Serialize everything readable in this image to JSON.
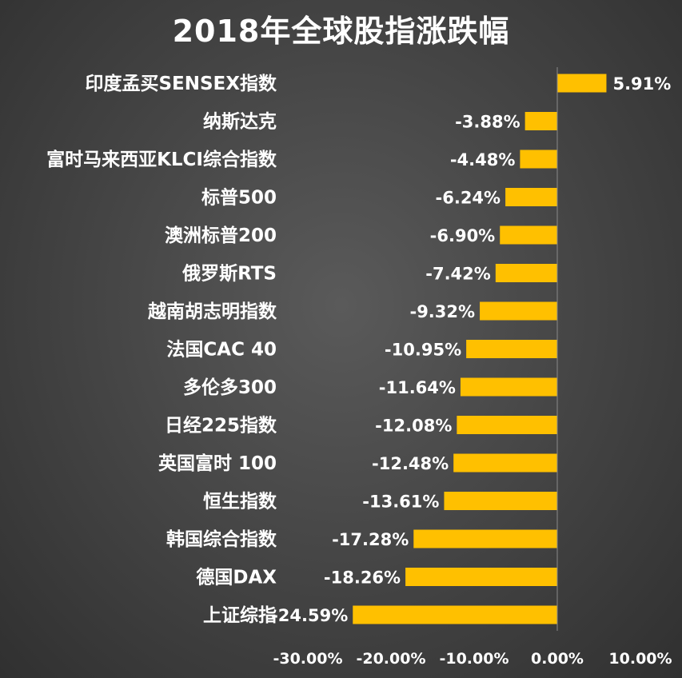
{
  "chart_data": {
    "type": "bar",
    "orientation": "horizontal",
    "title": "2018年全球股指涨跌幅",
    "categories": [
      "印度孟买SENSEX指数",
      "纳斯达克",
      "富时马来西亚KLCI综合指数",
      "标普500",
      "澳洲标普200",
      "俄罗斯RTS",
      "越南胡志明指数",
      "法国CAC 40",
      "多伦多300",
      "日经225指数",
      "英国富时 100",
      "恒生指数",
      "韩国综合指数",
      "德国DAX",
      "上证综指"
    ],
    "values": [
      5.91,
      -3.88,
      -4.48,
      -6.24,
      -6.9,
      -7.42,
      -9.32,
      -10.95,
      -11.64,
      -12.08,
      -12.48,
      -13.61,
      -17.28,
      -18.26,
      -24.59
    ],
    "value_labels": [
      "5.91%",
      "-3.88%",
      "-4.48%",
      "-6.24%",
      "-6.90%",
      "-7.42%",
      "-9.32%",
      "-10.95%",
      "-11.64%",
      "-12.08%",
      "-12.48%",
      "-13.61%",
      "-17.28%",
      "-18.26%",
      "-24.59%"
    ],
    "xlim": [
      -30,
      10
    ],
    "x_ticks": [
      -30,
      -20,
      -10,
      0,
      10
    ],
    "x_tick_labels": [
      "-30.00%",
      "-20.00%",
      "-10.00%",
      "0.00%",
      "10.00%"
    ],
    "bar_color": "#FFC000",
    "grid": false,
    "legend": "none"
  }
}
